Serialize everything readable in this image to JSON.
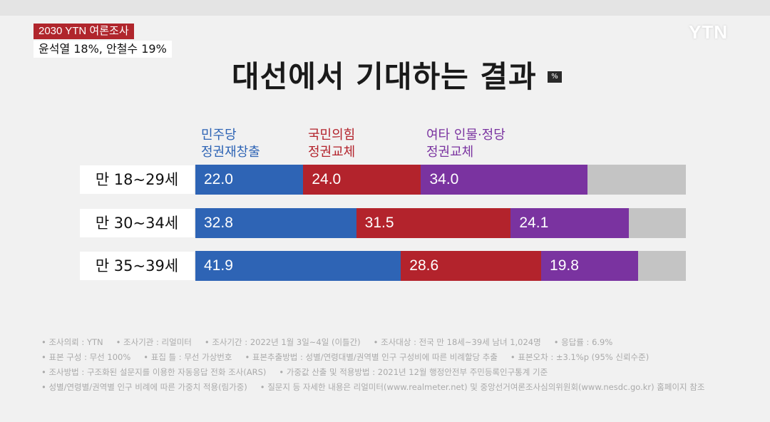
{
  "header": {
    "badge_top": "2030 YTN 여론조사",
    "badge_bottom": "윤석열 18%, 안철수 19%",
    "logo": "YTN"
  },
  "chart_data": {
    "type": "bar",
    "orientation": "horizontal",
    "stacked": true,
    "title": "대선에서 기대하는 결과",
    "unit": "%",
    "categories": [
      "만 18~29세",
      "만 30~34세",
      "만 35~39세"
    ],
    "series": [
      {
        "name_line1": "민주당",
        "name_line2": "정권재창출",
        "color": "#2e64b5",
        "values": [
          22.0,
          32.8,
          41.9
        ],
        "labels": [
          "22.0",
          "32.8",
          "41.9"
        ]
      },
      {
        "name_line1": "국민의힘",
        "name_line2": "정권교체",
        "color": "#b3232c",
        "values": [
          24.0,
          31.5,
          28.6
        ],
        "labels": [
          "24.0",
          "31.5",
          "28.6"
        ]
      },
      {
        "name_line1": "여타 인물·정당",
        "name_line2": "정권교체",
        "color": "#7a33a0",
        "values": [
          34.0,
          24.1,
          19.8
        ],
        "labels": [
          "34.0",
          "24.1",
          "19.8"
        ]
      }
    ],
    "remainder_color": "#c4c4c4",
    "xlim": [
      0,
      100
    ]
  },
  "notes": [
    [
      "조사의뢰 : YTN",
      "조사기관 : 리얼미터",
      "조사기간 : 2022년 1월 3일~4일 (이틀간)",
      "조사대상 : 전국 만 18세~39세 남녀 1,024명",
      "응답률 : 6.9%"
    ],
    [
      "표본 구성 : 무선 100%",
      "표집 틀 : 무선 가상번호",
      "표본추출방법 : 성별/연령대별/권역별 인구 구성비에 따른 비례할당 추출",
      "표본오차 : ±3.1%p (95% 신뢰수준)"
    ],
    [
      "조사방법 : 구조화된 설문지를 이용한 자동응답 전화 조사(ARS)",
      "가중값 산출 및 적용방법 : 2021년 12월 행정안전부 주민등록인구통계 기준"
    ],
    [
      "성별/연령별/권역별 인구 비례에 따른 가중치 적용(림가중)",
      "질문지 등 자세한 내용은 리얼미터(www.realmeter.net) 및 중앙선거여론조사심의위원회(www.nesdc.go.kr) 홈페이지 참조"
    ]
  ]
}
